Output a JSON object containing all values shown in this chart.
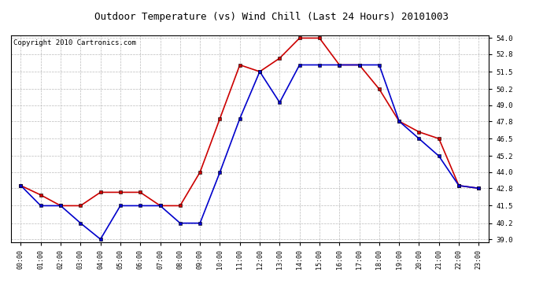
{
  "title": "Outdoor Temperature (vs) Wind Chill (Last 24 Hours) 20101003",
  "copyright": "Copyright 2010 Cartronics.com",
  "hours": [
    "00:00",
    "01:00",
    "02:00",
    "03:00",
    "04:00",
    "05:00",
    "06:00",
    "07:00",
    "08:00",
    "09:00",
    "10:00",
    "11:00",
    "12:00",
    "13:00",
    "14:00",
    "15:00",
    "16:00",
    "17:00",
    "18:00",
    "19:00",
    "20:00",
    "21:00",
    "22:00",
    "23:00"
  ],
  "temp": [
    43.0,
    42.3,
    41.5,
    41.5,
    42.5,
    42.5,
    42.5,
    41.5,
    41.5,
    44.0,
    48.0,
    52.0,
    51.5,
    52.5,
    54.0,
    54.0,
    52.0,
    52.0,
    50.2,
    47.8,
    47.0,
    46.5,
    43.0,
    42.8
  ],
  "wind_chill": [
    43.0,
    41.5,
    41.5,
    40.2,
    39.0,
    41.5,
    41.5,
    41.5,
    40.2,
    40.2,
    44.0,
    48.0,
    51.5,
    49.2,
    52.0,
    52.0,
    52.0,
    52.0,
    52.0,
    47.8,
    46.5,
    45.2,
    43.0,
    42.8
  ],
  "temp_color": "#cc0000",
  "wind_chill_color": "#0000cc",
  "background_color": "#ffffff",
  "grid_color": "#bbbbbb",
  "ylim_min": 39.0,
  "ylim_max": 54.0,
  "yticks": [
    39.0,
    40.2,
    41.5,
    42.8,
    44.0,
    45.2,
    46.5,
    47.8,
    49.0,
    50.2,
    51.5,
    52.8,
    54.0
  ],
  "title_fontsize": 9,
  "copyright_fontsize": 6.5,
  "markersize": 3,
  "linewidth": 1.2
}
